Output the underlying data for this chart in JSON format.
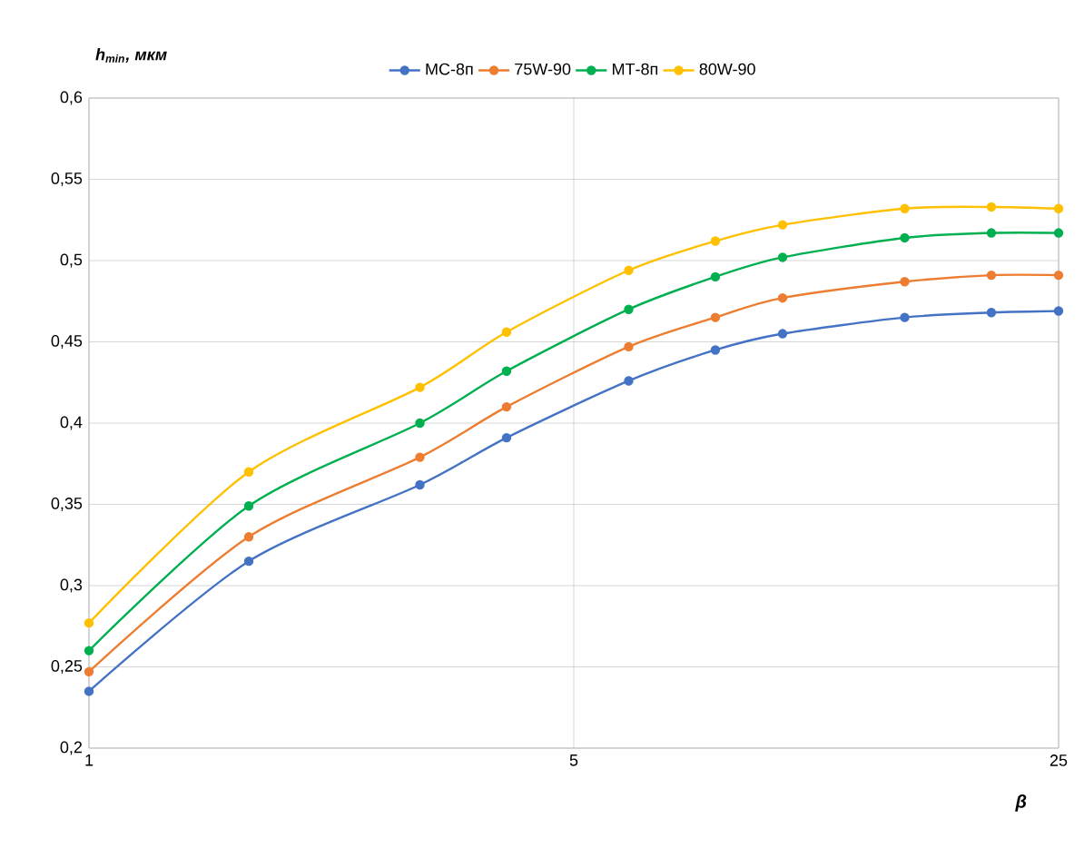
{
  "chart_data": {
    "type": "line",
    "xlabel": "β",
    "ylabel": "h$_{min}$, мкм",
    "x": [
      1,
      1.7,
      3,
      4,
      6,
      8,
      10,
      15,
      20,
      25
    ],
    "series": [
      {
        "name": "МС-8п",
        "color": "#4472c4",
        "values": [
          0.235,
          0.315,
          0.362,
          0.391,
          0.426,
          0.445,
          0.455,
          0.465,
          0.468,
          0.469
        ]
      },
      {
        "name": "75W-90",
        "color": "#ed7d31",
        "values": [
          0.247,
          0.33,
          0.379,
          0.41,
          0.447,
          0.465,
          0.477,
          0.487,
          0.491,
          0.491
        ]
      },
      {
        "name": "МТ-8п",
        "color": "#00b050",
        "values": [
          0.26,
          0.349,
          0.4,
          0.432,
          0.47,
          0.49,
          0.502,
          0.514,
          0.517,
          0.517
        ]
      },
      {
        "name": "80W-90",
        "color": "#ffc000",
        "values": [
          0.277,
          0.37,
          0.422,
          0.456,
          0.494,
          0.512,
          0.522,
          0.532,
          0.533,
          0.532
        ]
      }
    ],
    "log": "x",
    "xlim": [
      1,
      25
    ],
    "xticks": [
      1,
      5,
      25
    ],
    "ylim": [
      0.2,
      0.6
    ],
    "yticks": [
      {
        "value": 0.2,
        "label": "0,2"
      },
      {
        "value": 0.25,
        "label": "0,25"
      },
      {
        "value": 0.3,
        "label": "0,3"
      },
      {
        "value": 0.35,
        "label": "0,35"
      },
      {
        "value": 0.4,
        "label": "0,4"
      },
      {
        "value": 0.45,
        "label": "0,45"
      },
      {
        "value": 0.5,
        "label": "0,5"
      },
      {
        "value": 0.55,
        "label": "0,55"
      },
      {
        "value": 0.6,
        "label": "0,6"
      }
    ],
    "grid": true,
    "legend": "top",
    "marker": "circle",
    "line_style": "solid"
  }
}
